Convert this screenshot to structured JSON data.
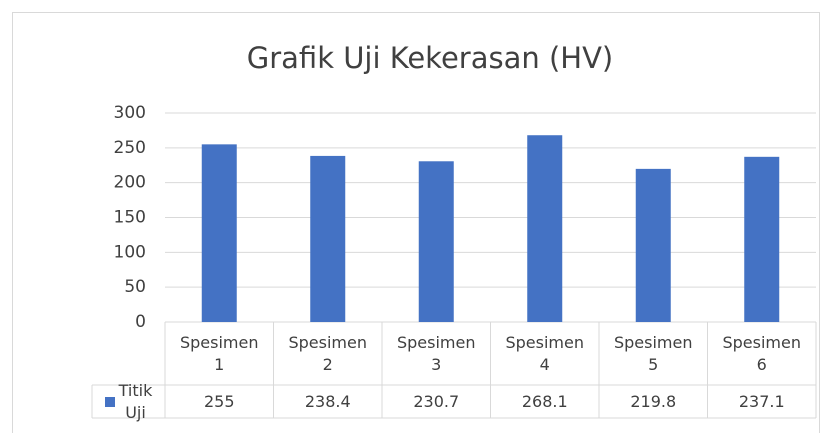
{
  "chart_data": {
    "type": "bar",
    "title": "Grafik Uji Kekerasan (HV)",
    "categories": [
      "Spesimen 1",
      "Spesimen 2",
      "Spesimen 3",
      "Spesimen 4",
      "Spesimen 5",
      "Spesimen 6"
    ],
    "series": [
      {
        "name": "Titik Uji",
        "color": "#4472c4",
        "values": [
          255,
          238.4,
          230.7,
          268.1,
          219.8,
          237.1
        ]
      }
    ],
    "ylim": [
      0,
      300
    ],
    "yticks": [
      0,
      50,
      100,
      150,
      200,
      250,
      300
    ],
    "grid": true,
    "data_table": true
  }
}
